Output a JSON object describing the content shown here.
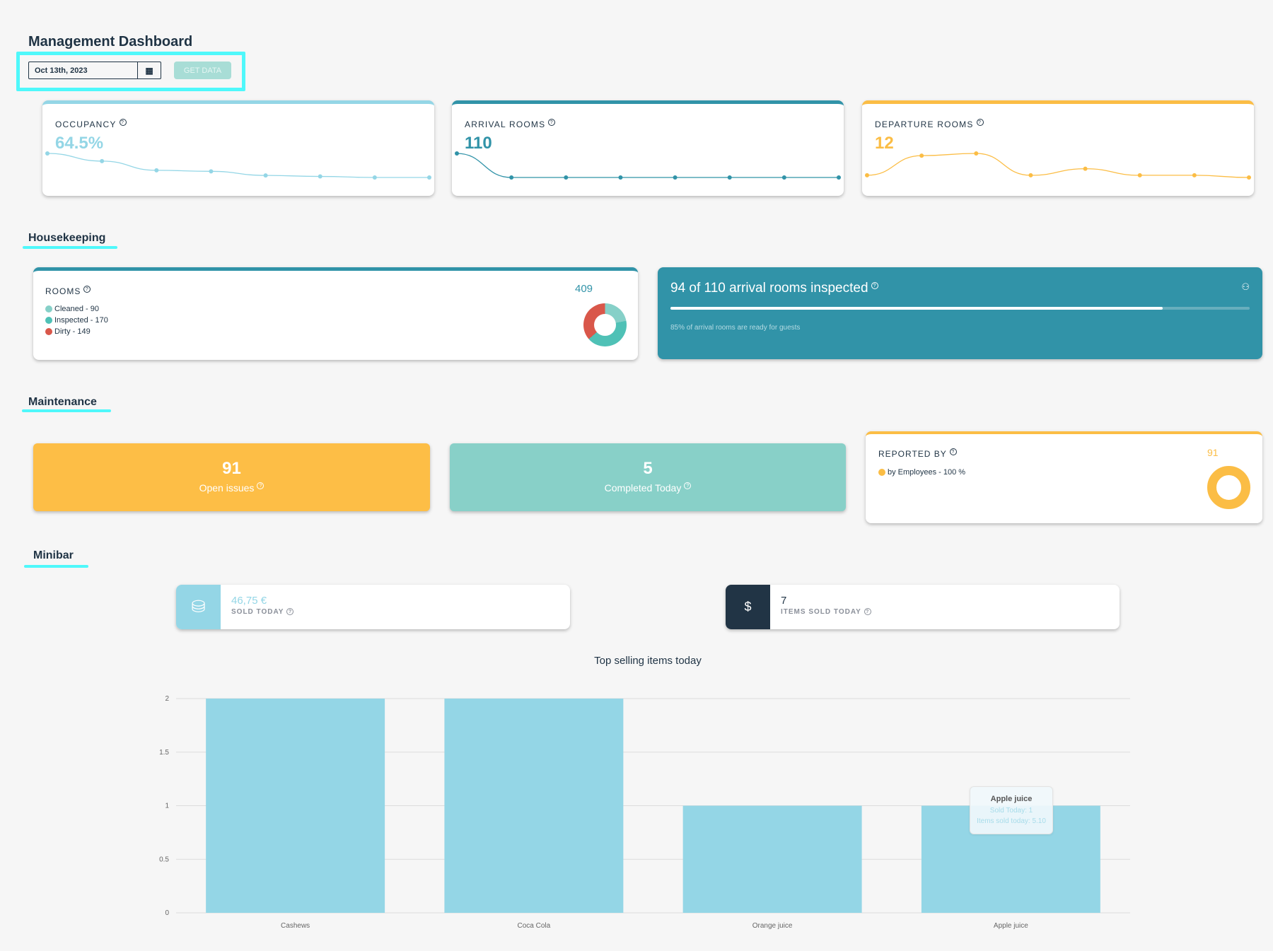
{
  "header": {
    "title": "Management Dashboard",
    "date": "Oct 13th, 2023",
    "get_data": "GET DATA"
  },
  "kpis": [
    {
      "label": "OCCUPANCY",
      "value": "64.5%",
      "color": "#94d6e6",
      "trend": [
        64.5,
        57,
        48,
        47,
        43,
        42,
        41,
        41
      ]
    },
    {
      "label": "ARRIVAL ROOMS",
      "value": "110",
      "color": "#3193a8",
      "trend": [
        110,
        0,
        0,
        0,
        0,
        0,
        0,
        0
      ]
    },
    {
      "label": "DEPARTURE ROOMS",
      "value": "12",
      "color": "#fbbd45",
      "trend": [
        2,
        11,
        12,
        2,
        5,
        2,
        2,
        1
      ]
    }
  ],
  "housekeeping": {
    "title": "Housekeeping",
    "rooms": {
      "label": "ROOMS",
      "total": "409",
      "items": [
        {
          "label": "Cleaned - 90",
          "value": 90,
          "color": "#86d0c8"
        },
        {
          "label": "Inspected - 170",
          "value": 170,
          "color": "#4fc1b6"
        },
        {
          "label": "Dirty - 149",
          "value": 149,
          "color": "#d9574a"
        }
      ]
    },
    "inspection": {
      "title": "94 of 110 arrival rooms inspected",
      "progress": 0.85,
      "subtitle": "85% of arrival rooms are ready for guests",
      "color": "#3193a8"
    }
  },
  "maintenance": {
    "title": "Maintenance",
    "open": {
      "value": "91",
      "label": "Open issues",
      "color": "#fdbe46"
    },
    "completed": {
      "value": "5",
      "label": "Completed Today",
      "color": "#88d0c8"
    },
    "reported": {
      "label": "REPORTED BY",
      "total": "91",
      "items": [
        {
          "label": "by Employees - 100 %",
          "value": 100,
          "color": "#fbbd45"
        }
      ]
    }
  },
  "minibar": {
    "title": "Minibar",
    "sold": {
      "value": "46,75 €",
      "label": "SOLD TODAY",
      "icon": "coins-icon"
    },
    "items": {
      "value": "7",
      "label": "ITEMS SOLD TODAY",
      "icon": "hand-dollar-icon"
    }
  },
  "chart_data": {
    "type": "bar",
    "title": "Top selling items today",
    "categories": [
      "Cashews",
      "Coca Cola",
      "Orange juice",
      "Apple juice"
    ],
    "values": [
      2,
      2,
      1,
      1
    ],
    "ylim": [
      0,
      2
    ],
    "yticks": [
      "0",
      "0.5",
      "1",
      "1.5",
      "2"
    ],
    "grid": true,
    "color": "#94d6e6",
    "tooltip": {
      "title": "Apple juice",
      "line1": "Sold Today: 1",
      "line2": "Items sold today: 5.10"
    }
  }
}
